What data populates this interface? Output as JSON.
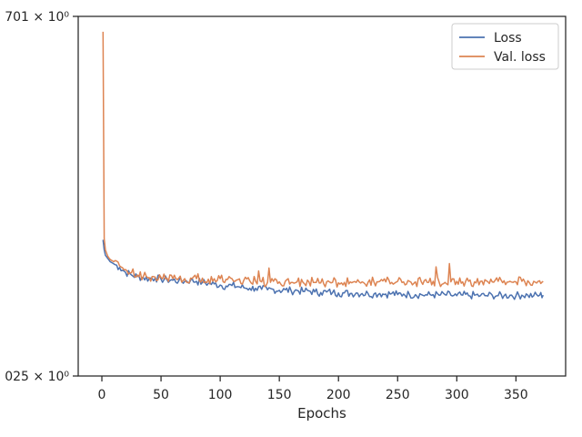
{
  "chart_data": {
    "type": "line",
    "title": "",
    "xlabel": "Epochs",
    "ylabel": "",
    "xlim": [
      -20,
      392
    ],
    "ylim": [
      0.9025,
      0.9701
    ],
    "x_ticks": [
      0,
      50,
      100,
      150,
      200,
      250,
      300,
      350
    ],
    "y_tick_labels": [
      {
        "value": 0.9701,
        "label": "701 × 10⁰"
      },
      {
        "value": 0.9025,
        "label": "025 × 10⁰"
      }
    ],
    "grid": false,
    "legend_position": "top-right",
    "series": [
      {
        "name": "Loss",
        "color": "#4c72b0",
        "x": [
          1,
          2,
          3,
          5,
          7,
          10,
          15,
          20,
          25,
          30,
          35,
          40,
          45,
          50,
          55,
          60,
          65,
          70,
          75,
          80,
          85,
          90,
          95,
          100,
          105,
          110,
          115,
          120,
          125,
          130,
          135,
          140,
          145,
          150,
          155,
          160,
          165,
          170,
          175,
          180,
          185,
          190,
          195,
          200,
          205,
          210,
          215,
          220,
          225,
          230,
          235,
          240,
          245,
          250,
          255,
          260,
          265,
          270,
          275,
          280,
          285,
          290,
          295,
          300,
          305,
          310,
          315,
          320,
          325,
          330,
          335,
          340,
          345,
          350,
          355,
          360,
          365,
          370,
          373
        ],
        "values": [
          0.9281,
          0.9262,
          0.9252,
          0.9246,
          0.924,
          0.9236,
          0.9229,
          0.922,
          0.9215,
          0.9212,
          0.921,
          0.9208,
          0.9209,
          0.9207,
          0.9206,
          0.9205,
          0.9204,
          0.9203,
          0.9205,
          0.9203,
          0.9201,
          0.9199,
          0.9198,
          0.9196,
          0.9194,
          0.9195,
          0.9193,
          0.9191,
          0.919,
          0.919,
          0.9188,
          0.9187,
          0.9188,
          0.9186,
          0.9187,
          0.9185,
          0.9186,
          0.9184,
          0.9185,
          0.9183,
          0.9182,
          0.9183,
          0.9182,
          0.9181,
          0.9181,
          0.918,
          0.9181,
          0.918,
          0.918,
          0.9179,
          0.918,
          0.9179,
          0.918,
          0.9178,
          0.9179,
          0.9178,
          0.9178,
          0.9178,
          0.9177,
          0.9178,
          0.9177,
          0.9178,
          0.9177,
          0.9176,
          0.9177,
          0.9176,
          0.9177,
          0.9176,
          0.9176,
          0.9177,
          0.9176,
          0.9176,
          0.9177,
          0.9176,
          0.9177,
          0.9177,
          0.9176,
          0.9177,
          0.9177
        ]
      },
      {
        "name": "Val. loss",
        "color": "#dd8452",
        "x": [
          1,
          2,
          3,
          5,
          7,
          10,
          15,
          20,
          25,
          30,
          35,
          40,
          45,
          50,
          55,
          60,
          65,
          70,
          75,
          80,
          85,
          90,
          95,
          100,
          105,
          110,
          115,
          120,
          125,
          130,
          135,
          140,
          145,
          150,
          155,
          160,
          165,
          170,
          175,
          180,
          185,
          190,
          195,
          200,
          205,
          210,
          215,
          220,
          225,
          230,
          235,
          240,
          245,
          250,
          255,
          260,
          265,
          270,
          275,
          280,
          285,
          290,
          295,
          300,
          305,
          310,
          315,
          320,
          325,
          330,
          335,
          340,
          345,
          350,
          355,
          360,
          365,
          370,
          373
        ],
        "values": [
          0.9672,
          0.9283,
          0.9262,
          0.925,
          0.9244,
          0.924,
          0.9232,
          0.9225,
          0.9219,
          0.9215,
          0.9212,
          0.921,
          0.9211,
          0.921,
          0.9209,
          0.9208,
          0.9209,
          0.9208,
          0.9209,
          0.9208,
          0.9209,
          0.9207,
          0.9208,
          0.9208,
          0.9207,
          0.9208,
          0.9206,
          0.9205,
          0.9204,
          0.9203,
          0.9202,
          0.9201,
          0.9203,
          0.9202,
          0.9203,
          0.9201,
          0.9202,
          0.9201,
          0.9202,
          0.9201,
          0.92,
          0.9202,
          0.9201,
          0.92,
          0.9201,
          0.9202,
          0.9201,
          0.9202,
          0.9201,
          0.9202,
          0.9203,
          0.9202,
          0.9201,
          0.9203,
          0.9202,
          0.9203,
          0.9202,
          0.9202,
          0.9201,
          0.9203,
          0.9202,
          0.9201,
          0.9202,
          0.9203,
          0.9202,
          0.9203,
          0.9202,
          0.9203,
          0.9204,
          0.9202,
          0.9203,
          0.9204,
          0.9203,
          0.9202,
          0.9203,
          0.9204,
          0.9203,
          0.9204,
          0.9203
        ]
      }
    ]
  }
}
